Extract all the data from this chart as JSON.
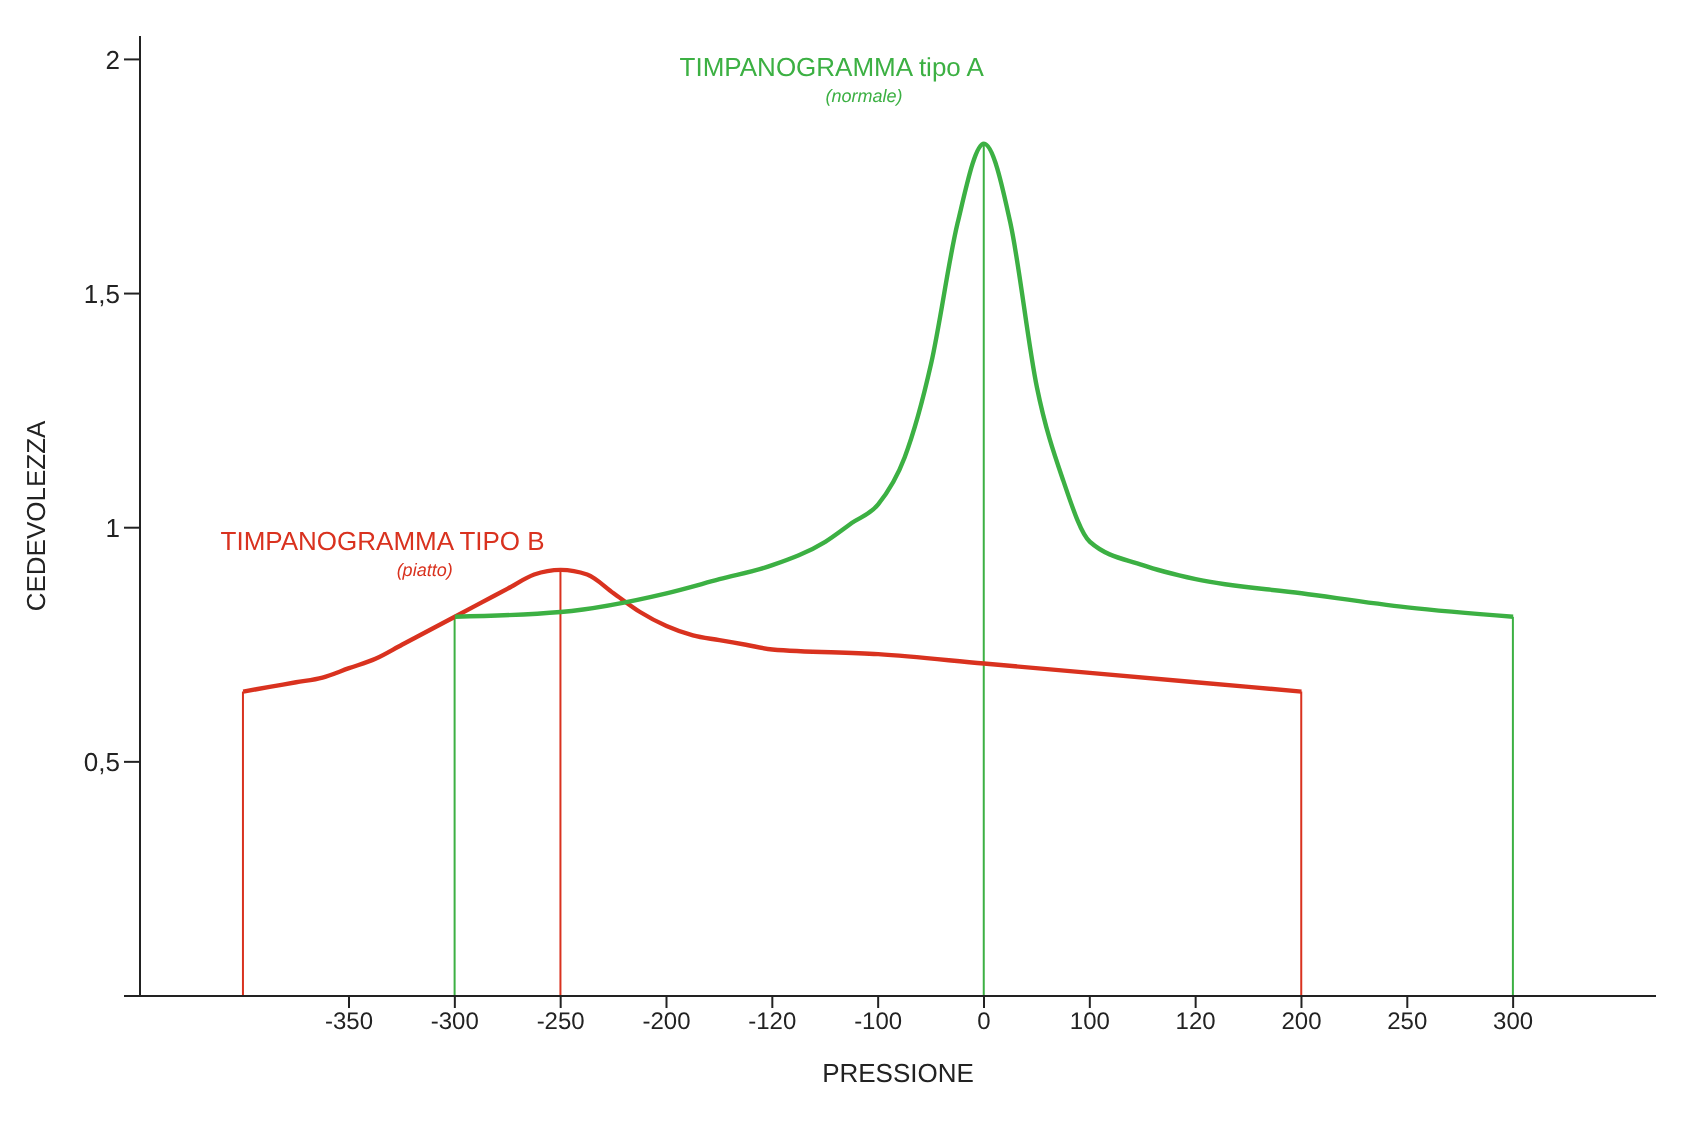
{
  "chart_data": {
    "type": "line",
    "xlabel": "PRESSIONE",
    "ylabel": "CEDEVOLEZZA",
    "categories": [
      null,
      null,
      null,
      null,
      "-350",
      null,
      null,
      null,
      "-300",
      null,
      null,
      null,
      "-250",
      null,
      null,
      null,
      "-200",
      null,
      null,
      null,
      "-120",
      null,
      null,
      null,
      "-100",
      null,
      null,
      null,
      "0",
      null,
      null,
      null,
      "100",
      null,
      null,
      null,
      "120",
      null,
      null,
      null,
      "200",
      null,
      null,
      null,
      "250",
      null,
      null,
      null,
      "300"
    ],
    "series": [
      {
        "type": "bar",
        "color": "#d9321f",
        "values": [
          0.65,
          null,
          null,
          null,
          null,
          null,
          null,
          null,
          null,
          null,
          null,
          null,
          0.91,
          null,
          null,
          null,
          null,
          null,
          null,
          null,
          null,
          null,
          null,
          null,
          null,
          null,
          null,
          null,
          null,
          null,
          null,
          null,
          null,
          null,
          null,
          null,
          null,
          null,
          null,
          null,
          0.65,
          null,
          null,
          null,
          null,
          null,
          null,
          null,
          null
        ]
      },
      {
        "type": "bar",
        "color": "#3cb043",
        "values": [
          null,
          null,
          null,
          null,
          null,
          null,
          null,
          null,
          0.81,
          null,
          null,
          null,
          null,
          null,
          null,
          null,
          null,
          null,
          null,
          null,
          null,
          null,
          null,
          null,
          null,
          null,
          null,
          null,
          1.82,
          null,
          null,
          null,
          null,
          null,
          null,
          null,
          null,
          null,
          null,
          null,
          null,
          null,
          null,
          null,
          null,
          null,
          null,
          null,
          0.81
        ]
      },
      {
        "name": "TIMPANOGRAMMA TIPO B",
        "color": "#d9321f",
        "values": [
          0.65,
          0.66,
          0.67,
          0.68,
          0.7,
          0.72,
          0.75,
          0.78,
          0.81,
          0.84,
          0.87,
          0.9,
          0.91,
          0.9,
          0.86,
          0.82,
          0.79,
          0.77,
          0.76,
          0.75,
          0.74,
          null,
          null,
          null,
          0.73,
          null,
          null,
          null,
          0.71,
          null,
          null,
          null,
          0.69,
          null,
          null,
          null,
          0.67,
          null,
          null,
          null,
          0.65,
          null,
          null,
          null,
          null,
          null,
          null,
          null,
          null
        ]
      },
      {
        "name": "TIMPANOGRAMMA tipo A",
        "color": "#3cb043",
        "values": [
          null,
          null,
          null,
          null,
          null,
          null,
          null,
          null,
          0.81,
          null,
          null,
          null,
          0.82,
          null,
          null,
          null,
          0.86,
          null,
          0.89,
          null,
          0.92,
          null,
          0.97,
          1.01,
          1.05,
          1.15,
          1.35,
          1.65,
          1.82,
          1.65,
          1.3,
          1.1,
          0.97,
          null,
          0.92,
          null,
          0.89,
          null,
          null,
          null,
          0.86,
          null,
          null,
          null,
          0.83,
          null,
          null,
          null,
          0.81
        ]
      }
    ],
    "annotations": [
      "(piatto)",
      "(normale)"
    ],
    "ylim": [
      0,
      2.05
    ],
    "yticks": [
      {
        "value": 0,
        "label": null
      },
      {
        "value": 0.5,
        "label": "0,5"
      },
      1,
      {
        "value": 1.5,
        "label": "1,5"
      },
      2
    ]
  }
}
